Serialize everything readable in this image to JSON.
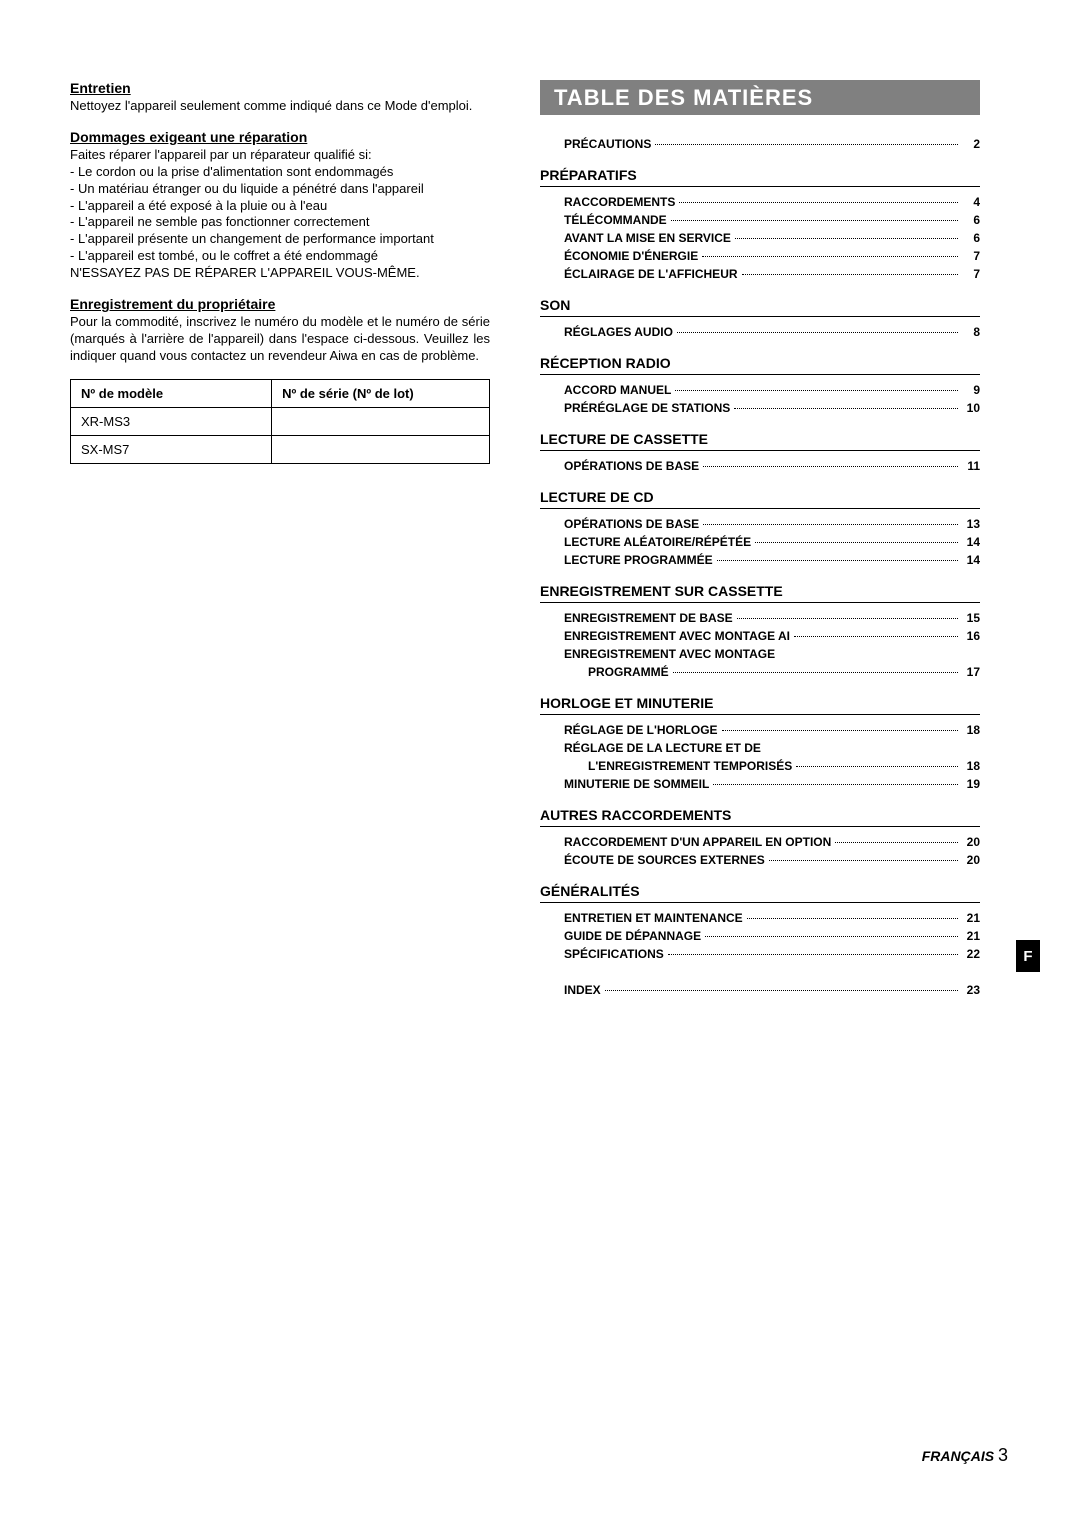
{
  "left": {
    "entretien": {
      "heading": "Entretien",
      "body": "Nettoyez l'appareil seulement comme indiqué dans ce Mode d'emploi."
    },
    "dommages": {
      "heading": "Dommages exigeant une réparation",
      "intro": "Faites réparer l'appareil par un réparateur qualifié si:",
      "items": [
        "Le cordon ou la prise d'alimentation sont endommagés",
        "Un matériau étranger ou du liquide a pénétré dans l'appareil",
        "L'appareil a été exposé à la pluie ou à l'eau",
        "L'appareil ne semble pas fonctionner correctement",
        "L'appareil présente un changement de performance important",
        "L'appareil est tombé, ou le coffret a été endommagé"
      ],
      "warning": "N'ESSAYEZ PAS DE RÉPARER L'APPAREIL VOUS-MÊME."
    },
    "enreg": {
      "heading": "Enregistrement du propriétaire",
      "body": "Pour la commodité, inscrivez le numéro du modèle et le numéro de série (marqués à l'arrière de l'appareil) dans l'espace ci-dessous. Veuillez les indiquer quand vous contactez un revendeur Aiwa en cas de problème."
    },
    "table": {
      "h1": "Nº de modèle",
      "h2": "Nº de série (Nº de lot)",
      "r1c1": "XR-MS3",
      "r2c1": "SX-MS7"
    }
  },
  "toc": {
    "title": "TABLE DES MATIÈRES",
    "precautions": {
      "label": "PRÉCAUTIONS",
      "page": "2"
    },
    "sections": [
      {
        "heading": "PRÉPARATIFS",
        "items": [
          {
            "label": "RACCORDEMENTS",
            "page": "4"
          },
          {
            "label": "TÉLÉCOMMANDE",
            "page": "6"
          },
          {
            "label": "AVANT LA MISE EN SERVICE",
            "page": "6"
          },
          {
            "label": "ÉCONOMIE D'ÉNERGIE",
            "page": "7"
          },
          {
            "label": "ÉCLAIRAGE DE L'AFFICHEUR",
            "page": "7"
          }
        ]
      },
      {
        "heading": "SON",
        "items": [
          {
            "label": "RÉGLAGES AUDIO",
            "page": "8"
          }
        ]
      },
      {
        "heading": "RÉCEPTION RADIO",
        "items": [
          {
            "label": "ACCORD MANUEL",
            "page": "9"
          },
          {
            "label": "PRÉRÉGLAGE DE STATIONS",
            "page": "10"
          }
        ]
      },
      {
        "heading": "LECTURE DE CASSETTE",
        "items": [
          {
            "label": "OPÉRATIONS DE BASE",
            "page": "11"
          }
        ]
      },
      {
        "heading": "LECTURE DE CD",
        "items": [
          {
            "label": "OPÉRATIONS DE BASE",
            "page": "13"
          },
          {
            "label": "LECTURE ALÉATOIRE/RÉPÉTÉE",
            "page": "14"
          },
          {
            "label": "LECTURE PROGRAMMÉE",
            "page": "14"
          }
        ]
      },
      {
        "heading": "ENREGISTREMENT SUR CASSETTE",
        "items": [
          {
            "label": "ENREGISTREMENT DE BASE",
            "page": "15"
          },
          {
            "label": "ENREGISTREMENT AVEC MONTAGE AI",
            "page": "16"
          },
          {
            "label": "ENREGISTREMENT AVEC MONTAGE",
            "cont_label": "PROGRAMMÉ",
            "page": "17"
          }
        ]
      },
      {
        "heading": "HORLOGE ET MINUTERIE",
        "items": [
          {
            "label": "RÉGLAGE DE L'HORLOGE",
            "page": "18"
          },
          {
            "label": "RÉGLAGE DE LA LECTURE ET DE",
            "cont_label": "L'ENREGISTREMENT TEMPORISÉS",
            "page": "18"
          },
          {
            "label": "MINUTERIE DE SOMMEIL",
            "page": "19"
          }
        ]
      },
      {
        "heading": "AUTRES RACCORDEMENTS",
        "items": [
          {
            "label": "RACCORDEMENT D'UN APPAREIL EN OPTION",
            "page": "20"
          },
          {
            "label": "ÉCOUTE DE SOURCES EXTERNES",
            "page": "20"
          }
        ]
      },
      {
        "heading": "GÉNÉRALITÉS",
        "items": [
          {
            "label": "ENTRETIEN ET MAINTENANCE",
            "page": "21"
          },
          {
            "label": "GUIDE DE DÉPANNAGE",
            "page": "21"
          },
          {
            "label": "SPÉCIFICATIONS",
            "page": "22"
          }
        ]
      }
    ],
    "index": {
      "label": "INDEX",
      "page": "23"
    }
  },
  "sideTab": "F",
  "footer": {
    "lang": "FRANÇAIS",
    "page": "3"
  }
}
